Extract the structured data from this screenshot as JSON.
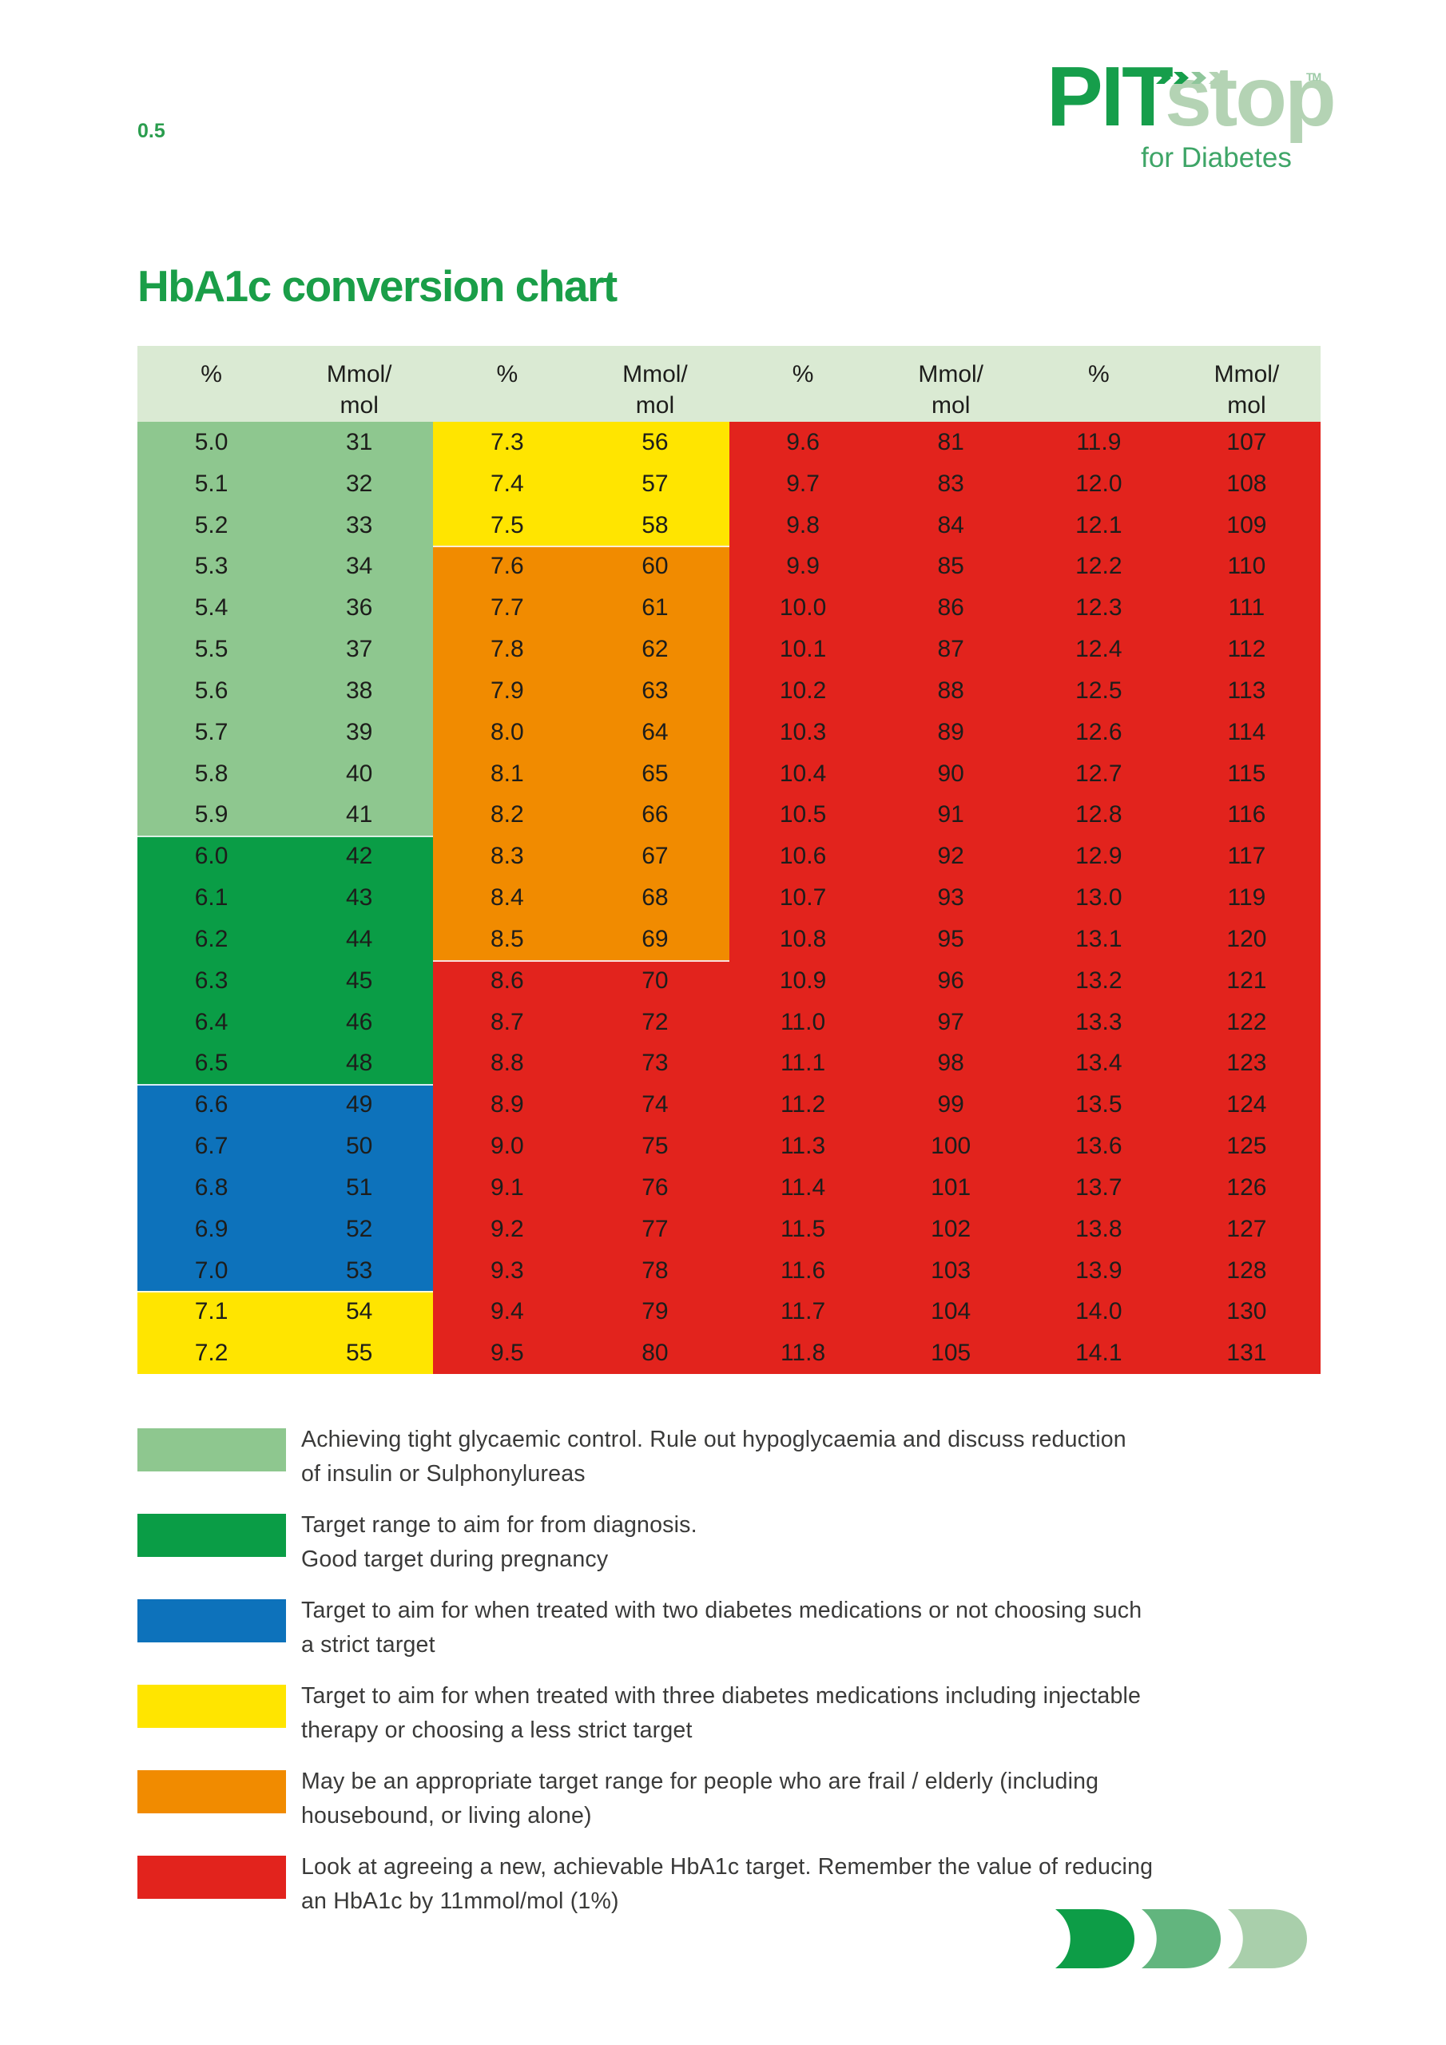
{
  "page_number": "0.5",
  "logo": {
    "pit": "PIT",
    "stop": "stop",
    "tm": "TM",
    "tagline": "for Diabetes",
    "speed_mark_colors": [
      "#169e4b",
      "#169e4b",
      "#8fc69b",
      "#b4d3b4"
    ]
  },
  "title": "HbA1c conversion chart",
  "table": {
    "column_headers": [
      "%",
      "Mmol/\nmol",
      "%",
      "Mmol/\nmol",
      "%",
      "Mmol/\nmol",
      "%",
      "Mmol/\nmol"
    ],
    "rows": [
      [
        "5.0",
        "31",
        "7.3",
        "56",
        "9.6",
        "81",
        "11.9",
        "107"
      ],
      [
        "5.1",
        "32",
        "7.4",
        "57",
        "9.7",
        "83",
        "12.0",
        "108"
      ],
      [
        "5.2",
        "33",
        "7.5",
        "58",
        "9.8",
        "84",
        "12.1",
        "109"
      ],
      [
        "5.3",
        "34",
        "7.6",
        "60",
        "9.9",
        "85",
        "12.2",
        "110"
      ],
      [
        "5.4",
        "36",
        "7.7",
        "61",
        "10.0",
        "86",
        "12.3",
        "111"
      ],
      [
        "5.5",
        "37",
        "7.8",
        "62",
        "10.1",
        "87",
        "12.4",
        "112"
      ],
      [
        "5.6",
        "38",
        "7.9",
        "63",
        "10.2",
        "88",
        "12.5",
        "113"
      ],
      [
        "5.7",
        "39",
        "8.0",
        "64",
        "10.3",
        "89",
        "12.6",
        "114"
      ],
      [
        "5.8",
        "40",
        "8.1",
        "65",
        "10.4",
        "90",
        "12.7",
        "115"
      ],
      [
        "5.9",
        "41",
        "8.2",
        "66",
        "10.5",
        "91",
        "12.8",
        "116"
      ],
      [
        "6.0",
        "42",
        "8.3",
        "67",
        "10.6",
        "92",
        "12.9",
        "117"
      ],
      [
        "6.1",
        "43",
        "8.4",
        "68",
        "10.7",
        "93",
        "13.0",
        "119"
      ],
      [
        "6.2",
        "44",
        "8.5",
        "69",
        "10.8",
        "95",
        "13.1",
        "120"
      ],
      [
        "6.3",
        "45",
        "8.6",
        "70",
        "10.9",
        "96",
        "13.2",
        "121"
      ],
      [
        "6.4",
        "46",
        "8.7",
        "72",
        "11.0",
        "97",
        "13.3",
        "122"
      ],
      [
        "6.5",
        "48",
        "8.8",
        "73",
        "11.1",
        "98",
        "13.4",
        "123"
      ],
      [
        "6.6",
        "49",
        "8.9",
        "74",
        "11.2",
        "99",
        "13.5",
        "124"
      ],
      [
        "6.7",
        "50",
        "9.0",
        "75",
        "11.3",
        "100",
        "13.6",
        "125"
      ],
      [
        "6.8",
        "51",
        "9.1",
        "76",
        "11.4",
        "101",
        "13.7",
        "126"
      ],
      [
        "6.9",
        "52",
        "9.2",
        "77",
        "11.5",
        "102",
        "13.8",
        "127"
      ],
      [
        "7.0",
        "53",
        "9.3",
        "78",
        "11.6",
        "103",
        "13.9",
        "128"
      ],
      [
        "7.1",
        "54",
        "9.4",
        "79",
        "11.7",
        "104",
        "14.0",
        "130"
      ],
      [
        "7.2",
        "55",
        "9.5",
        "80",
        "11.8",
        "105",
        "14.1",
        "131"
      ]
    ],
    "pair_block_colors": [
      [
        {
          "from": 0,
          "to": 9,
          "color": "light-green"
        },
        {
          "from": 10,
          "to": 15,
          "color": "dark-green"
        },
        {
          "from": 16,
          "to": 20,
          "color": "blue"
        },
        {
          "from": 21,
          "to": 22,
          "color": "yellow"
        }
      ],
      [
        {
          "from": 0,
          "to": 2,
          "color": "yellow"
        },
        {
          "from": 3,
          "to": 12,
          "color": "orange"
        },
        {
          "from": 13,
          "to": 22,
          "color": "red"
        }
      ],
      [
        {
          "from": 0,
          "to": 22,
          "color": "red"
        }
      ],
      [
        {
          "from": 0,
          "to": 22,
          "color": "red"
        }
      ]
    ],
    "palette": {
      "header": "#daead3",
      "light-green": "#8ec78f",
      "dark-green": "#0a9d46",
      "blue": "#0d72bb",
      "yellow": "#ffe500",
      "orange": "#f18b00",
      "red": "#e2231d"
    }
  },
  "legend": {
    "items": [
      {
        "color": "light-green",
        "lines": [
          "Achieving tight glycaemic control. Rule out hypoglycaemia and discuss reduction",
          "of insulin or Sulphonylureas"
        ]
      },
      {
        "color": "dark-green",
        "lines": [
          "Target range to aim for from diagnosis.",
          "Good target during pregnancy"
        ]
      },
      {
        "color": "blue",
        "lines": [
          "Target to aim for when treated with two diabetes medications or not choosing such",
          "a strict target"
        ]
      },
      {
        "color": "yellow",
        "lines": [
          "Target to aim for when treated with three diabetes medications including injectable",
          "therapy or choosing a less strict target"
        ]
      },
      {
        "color": "orange",
        "lines": [
          "May be an appropriate target range for people who are frail / elderly (including",
          "housebound, or living alone)"
        ]
      },
      {
        "color": "red",
        "lines": [
          "Look at agreeing a new, achievable HbA1c target. Remember the value of reducing",
          "an HbA1c by 11mmol/mol (1%)"
        ]
      }
    ],
    "tops": [
      1788,
      1895,
      2002,
      2109,
      2216,
      2323
    ]
  },
  "footer_chevron_colors": [
    "#0d9d47",
    "#62b57e",
    "#a9cfab"
  ]
}
